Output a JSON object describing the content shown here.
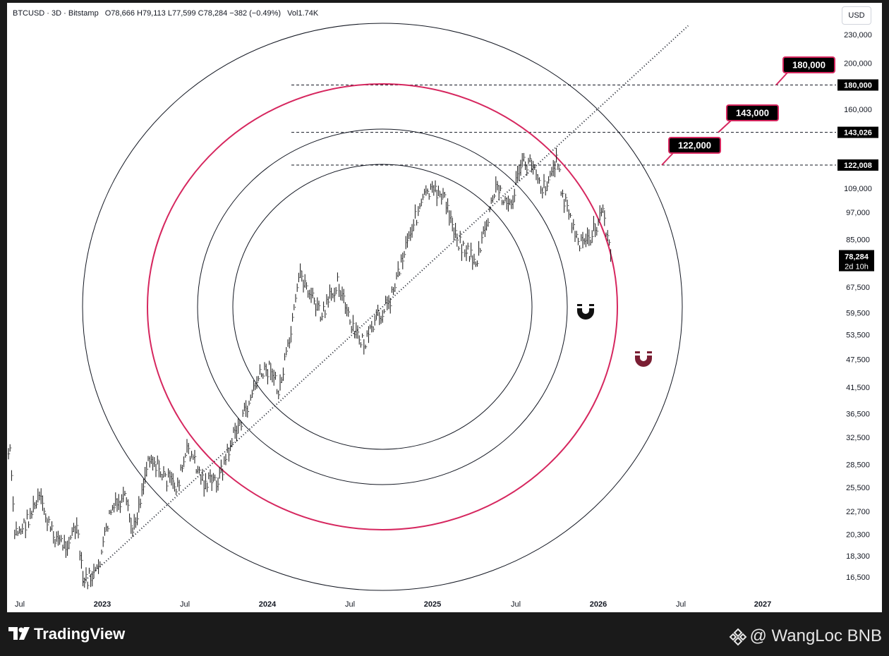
{
  "header": {
    "symbol": "BTCUSD",
    "interval": "3D",
    "exchange": "Bitstamp",
    "ohlc": "O78,666  H79,113  L77,599  C78,284  −382 (−0.49%)",
    "volume": "Vol1.74K",
    "currency_button": "USD"
  },
  "footer": {
    "brand": "TradingView",
    "watermark": "@ WangLoc BNB"
  },
  "colors": {
    "accent_ring": "#d6275f",
    "magnet_dark": "#111111",
    "magnet_red": "#7a1e33",
    "label_bg": "#000000",
    "label_border": "#d6275f"
  },
  "chart_data": {
    "type": "line",
    "scale": "log",
    "price_ticks": [
      "230,000",
      "200,000",
      "180,000",
      "160,000",
      "143,026",
      "122,008",
      "109,000",
      "97,000",
      "85,000",
      "78,284",
      "67,500",
      "59,500",
      "53,500",
      "47,500",
      "41,500",
      "36,500",
      "32,500",
      "28,500",
      "25,500",
      "22,700",
      "20,300",
      "18,300",
      "16,500"
    ],
    "time_ticks": [
      {
        "label": "Jul",
        "year": false
      },
      {
        "label": "2023",
        "year": true
      },
      {
        "label": "Jul",
        "year": false
      },
      {
        "label": "2024",
        "year": true
      },
      {
        "label": "Jul",
        "year": false
      },
      {
        "label": "2025",
        "year": true
      },
      {
        "label": "Jul",
        "year": false
      },
      {
        "label": "2026",
        "year": true
      },
      {
        "label": "Jul",
        "year": false
      },
      {
        "label": "2027",
        "year": true
      }
    ],
    "last_price": "78,284",
    "countdown": "2d 10h",
    "levels": [
      {
        "value": 180000,
        "axis_label": "180,000",
        "callout": "180,000"
      },
      {
        "value": 143026,
        "axis_label": "143,026",
        "callout": "143,000"
      },
      {
        "value": 122008,
        "axis_label": "122,008",
        "callout": "122,000"
      }
    ],
    "price_path": [
      {
        "t": "2022-06-12",
        "p": 30000
      },
      {
        "t": "2022-06-20",
        "p": 20400
      },
      {
        "t": "2022-07-10",
        "p": 21000
      },
      {
        "t": "2022-08-15",
        "p": 24200
      },
      {
        "t": "2022-09-10",
        "p": 20500
      },
      {
        "t": "2022-10-10",
        "p": 19200
      },
      {
        "t": "2022-11-05",
        "p": 21000
      },
      {
        "t": "2022-11-20",
        "p": 16100
      },
      {
        "t": "2022-12-20",
        "p": 16800
      },
      {
        "t": "2023-01-20",
        "p": 22800
      },
      {
        "t": "2023-02-20",
        "p": 24000
      },
      {
        "t": "2023-03-10",
        "p": 20400
      },
      {
        "t": "2023-04-15",
        "p": 30000
      },
      {
        "t": "2023-05-15",
        "p": 27000
      },
      {
        "t": "2023-06-15",
        "p": 25500
      },
      {
        "t": "2023-07-10",
        "p": 30800
      },
      {
        "t": "2023-08-15",
        "p": 26000
      },
      {
        "t": "2023-09-15",
        "p": 26500
      },
      {
        "t": "2023-10-20",
        "p": 33000
      },
      {
        "t": "2023-11-15",
        "p": 37000
      },
      {
        "t": "2023-12-10",
        "p": 43000
      },
      {
        "t": "2024-01-10",
        "p": 46000
      },
      {
        "t": "2024-01-25",
        "p": 40000
      },
      {
        "t": "2024-02-20",
        "p": 52000
      },
      {
        "t": "2024-03-14",
        "p": 72000
      },
      {
        "t": "2024-05-01",
        "p": 58000
      },
      {
        "t": "2024-06-05",
        "p": 70000
      },
      {
        "t": "2024-07-05",
        "p": 55000
      },
      {
        "t": "2024-08-05",
        "p": 51000
      },
      {
        "t": "2024-09-01",
        "p": 58000
      },
      {
        "t": "2024-09-30",
        "p": 64000
      },
      {
        "t": "2024-11-12",
        "p": 89000
      },
      {
        "t": "2024-12-17",
        "p": 106000
      },
      {
        "t": "2025-01-20",
        "p": 107000
      },
      {
        "t": "2025-02-28",
        "p": 84000
      },
      {
        "t": "2025-04-08",
        "p": 76000
      },
      {
        "t": "2025-05-22",
        "p": 110000
      },
      {
        "t": "2025-06-22",
        "p": 99000
      },
      {
        "t": "2025-07-14",
        "p": 122000
      },
      {
        "t": "2025-08-14",
        "p": 123000
      },
      {
        "t": "2025-09-01",
        "p": 108000
      },
      {
        "t": "2025-10-06",
        "p": 126000
      },
      {
        "t": "2025-10-10",
        "p": 110000
      },
      {
        "t": "2025-11-21",
        "p": 82000
      },
      {
        "t": "2025-12-15",
        "p": 86000
      },
      {
        "t": "2026-01-14",
        "p": 97000
      },
      {
        "t": "2026-01-30",
        "p": 78284
      }
    ],
    "trendline": {
      "start": {
        "t": "2022-11-20",
        "p": 16100
      },
      "end": {
        "t": "2026-07-20",
        "p": 240000
      }
    },
    "circles": [
      {
        "name": "inner",
        "accent": false
      },
      {
        "name": "middle",
        "accent": false
      },
      {
        "name": "accent",
        "accent": true
      },
      {
        "name": "outer",
        "accent": false
      }
    ]
  }
}
